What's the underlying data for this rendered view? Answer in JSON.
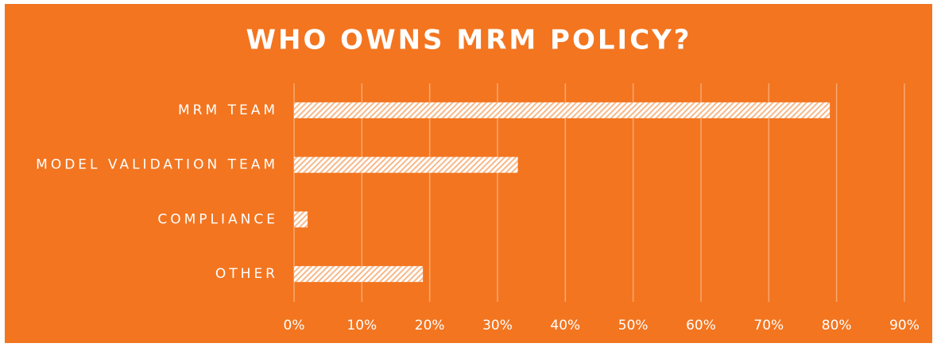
{
  "chart_data": {
    "type": "bar",
    "orientation": "horizontal",
    "title": "WHO OWNS MRM POLICY?",
    "categories": [
      "MRM TEAM",
      "MODEL VALIDATION TEAM",
      "COMPLIANCE",
      "OTHER"
    ],
    "values": [
      79,
      33,
      2,
      19
    ],
    "color": "#ffffff",
    "background": "#f37520",
    "xlim": [
      0,
      90
    ],
    "xticks": [
      {
        "value": 0,
        "label": "0%"
      },
      {
        "value": 10,
        "label": "10%"
      },
      {
        "value": 20,
        "label": "20%"
      },
      {
        "value": 30,
        "label": "30%"
      },
      {
        "value": 40,
        "label": "40%"
      },
      {
        "value": 50,
        "label": "50%"
      },
      {
        "value": 60,
        "label": "60%"
      },
      {
        "value": 70,
        "label": "70%"
      },
      {
        "value": 80,
        "label": "80%"
      },
      {
        "value": 90,
        "label": "90%"
      }
    ],
    "grid": true
  }
}
